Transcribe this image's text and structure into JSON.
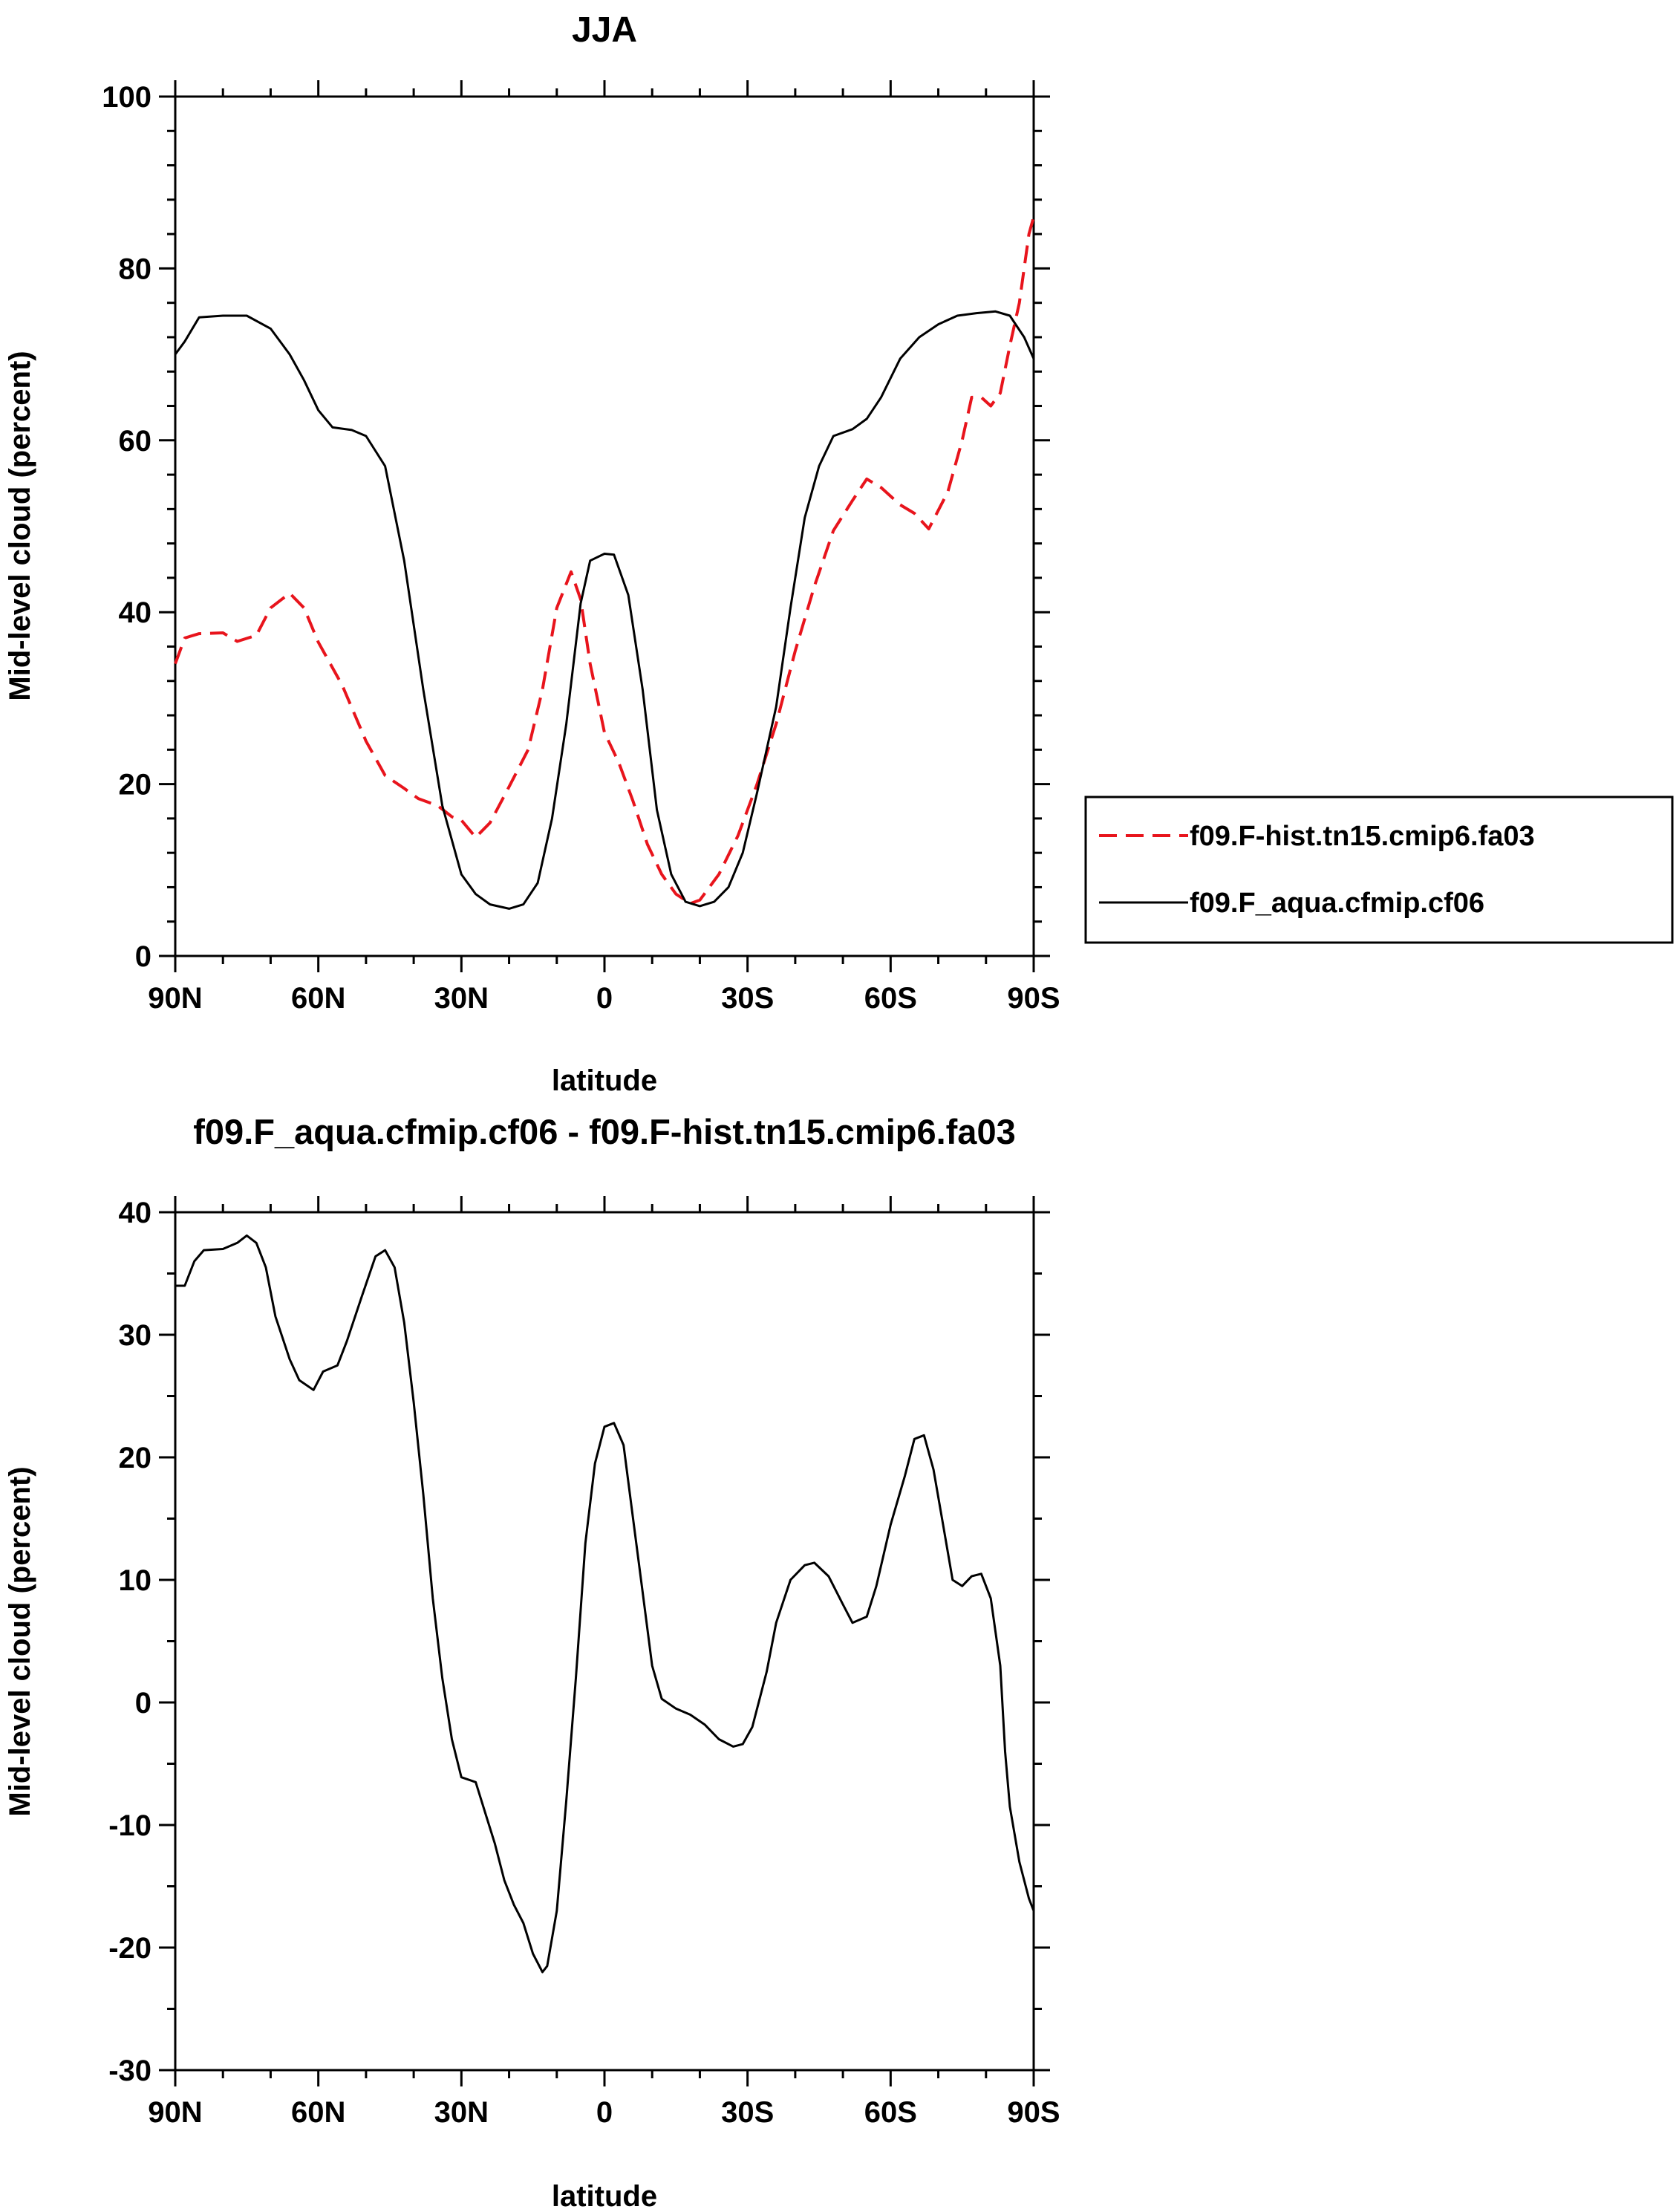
{
  "chart_data": [
    {
      "type": "line",
      "title": "JJA",
      "xlabel": "latitude",
      "ylabel": "Mid-level cloud (percent)",
      "xlim": [
        90,
        -90
      ],
      "ylim": [
        0,
        100
      ],
      "xticks": [
        {
          "value": 90,
          "label": "90N"
        },
        {
          "value": 60,
          "label": "60N"
        },
        {
          "value": 30,
          "label": "30N"
        },
        {
          "value": 0,
          "label": "0"
        },
        {
          "value": -30,
          "label": "30S"
        },
        {
          "value": -60,
          "label": "60S"
        },
        {
          "value": -90,
          "label": "90S"
        }
      ],
      "yticks": [
        0,
        20,
        40,
        60,
        80,
        100
      ],
      "grid": false,
      "legend": "right",
      "series": [
        {
          "name": "f09.F-hist.tn15.cmip6.fa03",
          "color": "#e8141c",
          "dash": "dashed",
          "points": [
            [
              90,
              34
            ],
            [
              88,
              37
            ],
            [
              85,
              37.5
            ],
            [
              80,
              37.6
            ],
            [
              77,
              36.6
            ],
            [
              73,
              37.3
            ],
            [
              70,
              40.5
            ],
            [
              66,
              42.2
            ],
            [
              63,
              40.5
            ],
            [
              60,
              36.5
            ],
            [
              55,
              31.5
            ],
            [
              50,
              25
            ],
            [
              46,
              21
            ],
            [
              42,
              19.5
            ],
            [
              39,
              18.3
            ],
            [
              35,
              17.5
            ],
            [
              32,
              16.2
            ],
            [
              30,
              15.8
            ],
            [
              27,
              13.8
            ],
            [
              24,
              15.5
            ],
            [
              20,
              19.7
            ],
            [
              16,
              24
            ],
            [
              13,
              31
            ],
            [
              10,
              40.5
            ],
            [
              7,
              44.7
            ],
            [
              5,
              41.5
            ],
            [
              3,
              34
            ],
            [
              0,
              26
            ],
            [
              -3,
              22.5
            ],
            [
              -6,
              18
            ],
            [
              -9,
              13
            ],
            [
              -12,
              9.5
            ],
            [
              -15,
              7.2
            ],
            [
              -18,
              6.1
            ],
            [
              -20,
              6.5
            ],
            [
              -24,
              9.5
            ],
            [
              -28,
              14
            ],
            [
              -32,
              20
            ],
            [
              -36,
              27
            ],
            [
              -40,
              35.5
            ],
            [
              -44,
              43
            ],
            [
              -48,
              49.5
            ],
            [
              -52,
              53
            ],
            [
              -55,
              55.5
            ],
            [
              -58,
              54.5
            ],
            [
              -62,
              52.5
            ],
            [
              -65,
              51.5
            ],
            [
              -68,
              49.7
            ],
            [
              -72,
              54
            ],
            [
              -75,
              60
            ],
            [
              -77,
              65
            ],
            [
              -79,
              65
            ],
            [
              -81,
              64
            ],
            [
              -83,
              65.5
            ],
            [
              -85,
              71
            ],
            [
              -87,
              76
            ],
            [
              -89,
              84
            ],
            [
              -90,
              86
            ]
          ]
        },
        {
          "name": "f09.F_aqua.cfmip.cf06",
          "color": "#000000",
          "dash": "solid",
          "points": [
            [
              90,
              70
            ],
            [
              88,
              71.5
            ],
            [
              85,
              74.3
            ],
            [
              80,
              74.5
            ],
            [
              75,
              74.5
            ],
            [
              70,
              73
            ],
            [
              66,
              70
            ],
            [
              63,
              67
            ],
            [
              60,
              63.5
            ],
            [
              57,
              61.5
            ],
            [
              53,
              61.2
            ],
            [
              50,
              60.5
            ],
            [
              46,
              57
            ],
            [
              42,
              46
            ],
            [
              38,
              31
            ],
            [
              34,
              17.5
            ],
            [
              30,
              9.5
            ],
            [
              27,
              7.2
            ],
            [
              24,
              6
            ],
            [
              20,
              5.5
            ],
            [
              17,
              6
            ],
            [
              14,
              8.5
            ],
            [
              11,
              16
            ],
            [
              8,
              27
            ],
            [
              5,
              41
            ],
            [
              3,
              46
            ],
            [
              0,
              46.8
            ],
            [
              -2,
              46.7
            ],
            [
              -5,
              42
            ],
            [
              -8,
              31
            ],
            [
              -11,
              17
            ],
            [
              -14,
              9.5
            ],
            [
              -17,
              6.3
            ],
            [
              -20,
              5.8
            ],
            [
              -23,
              6.3
            ],
            [
              -26,
              8
            ],
            [
              -29,
              12
            ],
            [
              -32,
              19
            ],
            [
              -36,
              29
            ],
            [
              -39,
              40.5
            ],
            [
              -42,
              51
            ],
            [
              -45,
              57
            ],
            [
              -48,
              60.5
            ],
            [
              -52,
              61.3
            ],
            [
              -55,
              62.5
            ],
            [
              -58,
              65
            ],
            [
              -62,
              69.5
            ],
            [
              -66,
              72
            ],
            [
              -70,
              73.5
            ],
            [
              -74,
              74.5
            ],
            [
              -78,
              74.8
            ],
            [
              -82,
              75
            ],
            [
              -85,
              74.5
            ],
            [
              -88,
              72
            ],
            [
              -90,
              69.5
            ]
          ]
        }
      ]
    },
    {
      "type": "line",
      "title": "f09.F_aqua.cfmip.cf06 - f09.F-hist.tn15.cmip6.fa03",
      "xlabel": "latitude",
      "ylabel": "Mid-level cloud (percent)",
      "xlim": [
        90,
        -90
      ],
      "ylim": [
        -30,
        40
      ],
      "xticks": [
        {
          "value": 90,
          "label": "90N"
        },
        {
          "value": 60,
          "label": "60N"
        },
        {
          "value": 30,
          "label": "30N"
        },
        {
          "value": 0,
          "label": "0"
        },
        {
          "value": -30,
          "label": "30S"
        },
        {
          "value": -60,
          "label": "60S"
        },
        {
          "value": -90,
          "label": "90S"
        }
      ],
      "yticks": [
        -30,
        -20,
        -10,
        0,
        10,
        20,
        30,
        40
      ],
      "grid": false,
      "series": [
        {
          "color": "#000000",
          "dash": "solid",
          "points": [
            [
              90,
              34
            ],
            [
              88,
              34
            ],
            [
              86,
              36
            ],
            [
              84,
              36.9
            ],
            [
              80,
              37
            ],
            [
              77,
              37.5
            ],
            [
              75,
              38.1
            ],
            [
              73,
              37.5
            ],
            [
              71,
              35.5
            ],
            [
              69,
              31.5
            ],
            [
              66,
              28
            ],
            [
              64,
              26.3
            ],
            [
              61,
              25.5
            ],
            [
              59,
              27
            ],
            [
              56,
              27.5
            ],
            [
              54,
              29.5
            ],
            [
              51,
              33
            ],
            [
              48,
              36.4
            ],
            [
              46,
              36.9
            ],
            [
              44,
              35.5
            ],
            [
              42,
              31
            ],
            [
              40,
              24.5
            ],
            [
              38,
              17
            ],
            [
              36,
              8.5
            ],
            [
              34,
              2
            ],
            [
              32,
              -3
            ],
            [
              30,
              -6.1
            ],
            [
              27,
              -6.5
            ],
            [
              25,
              -9
            ],
            [
              23,
              -11.5
            ],
            [
              21,
              -14.5
            ],
            [
              19,
              -16.5
            ],
            [
              17,
              -18
            ],
            [
              15,
              -20.5
            ],
            [
              13,
              -22
            ],
            [
              12,
              -21.5
            ],
            [
              10,
              -17
            ],
            [
              8,
              -8
            ],
            [
              6,
              2
            ],
            [
              4,
              13
            ],
            [
              2,
              19.5
            ],
            [
              0,
              22.5
            ],
            [
              -2,
              22.8
            ],
            [
              -4,
              21
            ],
            [
              -6,
              15
            ],
            [
              -8,
              9
            ],
            [
              -10,
              3
            ],
            [
              -12,
              0.3
            ],
            [
              -15,
              -0.5
            ],
            [
              -18,
              -1
            ],
            [
              -21,
              -1.8
            ],
            [
              -24,
              -3
            ],
            [
              -27,
              -3.6
            ],
            [
              -29,
              -3.4
            ],
            [
              -31,
              -2
            ],
            [
              -34,
              2.5
            ],
            [
              -36,
              6.5
            ],
            [
              -39,
              10
            ],
            [
              -42,
              11.2
            ],
            [
              -44,
              11.4
            ],
            [
              -47,
              10.3
            ],
            [
              -50,
              8
            ],
            [
              -52,
              6.5
            ],
            [
              -55,
              7
            ],
            [
              -57,
              9.5
            ],
            [
              -60,
              14.5
            ],
            [
              -63,
              18.5
            ],
            [
              -65,
              21.5
            ],
            [
              -67,
              21.8
            ],
            [
              -69,
              19
            ],
            [
              -71,
              14.5
            ],
            [
              -73,
              10
            ],
            [
              -75,
              9.5
            ],
            [
              -77,
              10.3
            ],
            [
              -79,
              10.5
            ],
            [
              -81,
              8.5
            ],
            [
              -83,
              3
            ],
            [
              -84,
              -4
            ],
            [
              -85,
              -8.5
            ],
            [
              -87,
              -13
            ],
            [
              -89,
              -16
            ],
            [
              -90,
              -17
            ]
          ]
        }
      ]
    }
  ]
}
